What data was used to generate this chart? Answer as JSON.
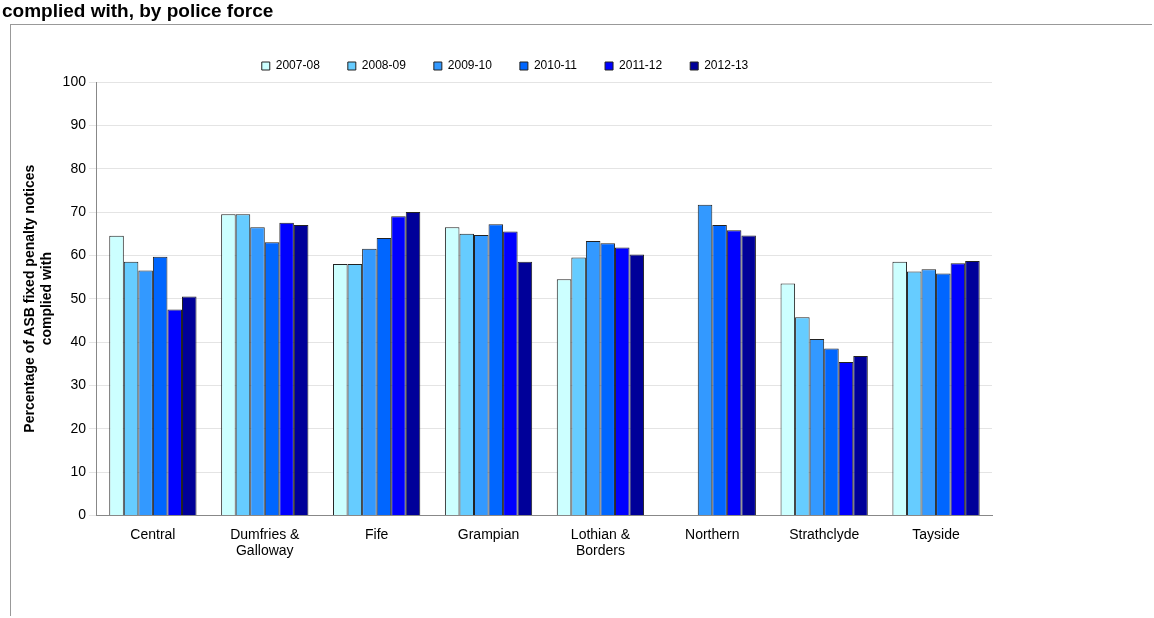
{
  "chart_data": {
    "type": "bar",
    "title": "complied with, by police force",
    "ylabel": "Percentage of ASB fixed penalty notices complied with",
    "categories": [
      "Central",
      "Dumfries & Galloway",
      "Fife",
      "Grampian",
      "Lothian & Borders",
      "Northern",
      "Strathclyde",
      "Tayside"
    ],
    "series": [
      {
        "name": "2007-08",
        "color": "#ccffff",
        "values": [
          64.5,
          69.5,
          58,
          66.5,
          54.5,
          null,
          53.5,
          58.5
        ]
      },
      {
        "name": "2008-09",
        "color": "#66ccff",
        "values": [
          58.5,
          69.5,
          58,
          65,
          59.5,
          null,
          45.7,
          56.3
        ]
      },
      {
        "name": "2009-10",
        "color": "#3399ff",
        "values": [
          56.5,
          66.5,
          61.5,
          64.7,
          63.3,
          71.7,
          40.7,
          56.8
        ]
      },
      {
        "name": "2010-11",
        "color": "#0066ff",
        "values": [
          59.7,
          63,
          64,
          67.2,
          62.8,
          67,
          38.5,
          55.8
        ]
      },
      {
        "name": "2011-12",
        "color": "#0000ff",
        "values": [
          47.5,
          67.5,
          69,
          65.5,
          61.8,
          65.8,
          35.4,
          58.2
        ]
      },
      {
        "name": "2012-13",
        "color": "#000099",
        "values": [
          50.5,
          67,
          70,
          58.5,
          60.2,
          64.6,
          36.8,
          58.7
        ]
      }
    ],
    "ylim": [
      0,
      100
    ],
    "yticks": [
      0,
      10,
      20,
      30,
      40,
      50,
      60,
      70,
      80,
      90,
      100
    ],
    "grid": "y",
    "legend": "top"
  }
}
